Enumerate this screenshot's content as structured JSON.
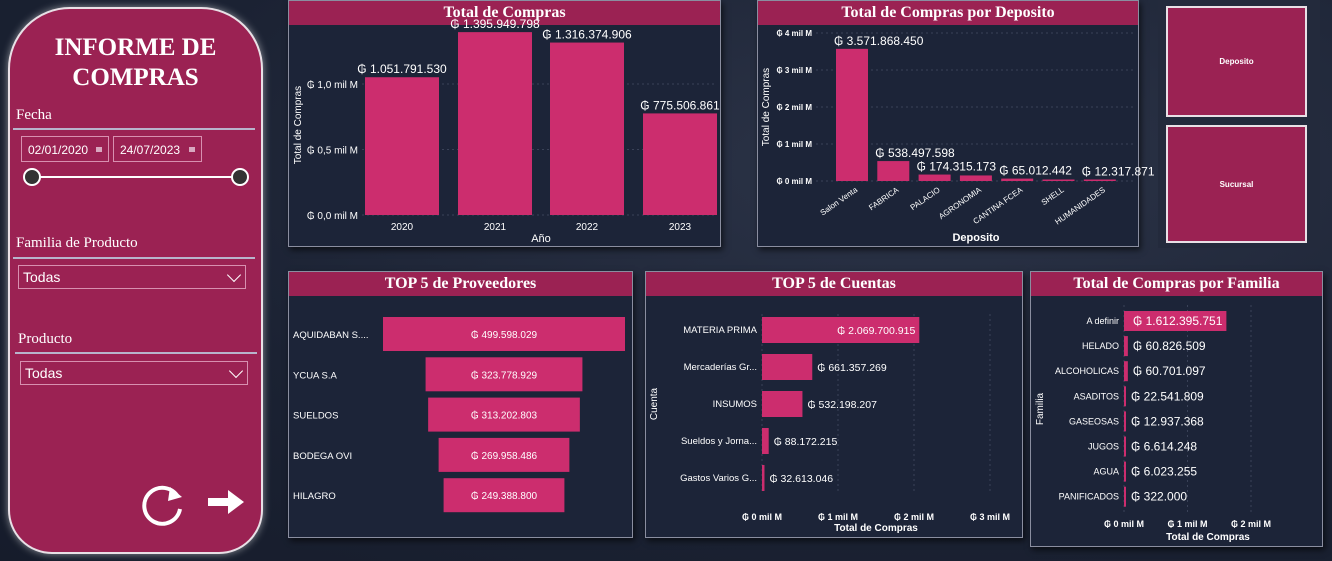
{
  "sidebar": {
    "title_line1": "INFORME DE",
    "title_line2": "COMPRAS",
    "fecha_label": "Fecha",
    "date_start": "02/01/2020",
    "date_end": "24/07/2023",
    "slider_range": [
      0,
      1
    ],
    "familia_label": "Familia de Producto",
    "familia_value": "Todas",
    "producto_label": "Producto",
    "producto_value": "Todas",
    "icons": [
      "refresh-icon",
      "arrow-right-icon"
    ]
  },
  "tiles": {
    "deposito": "Deposito",
    "sucursal": "Sucursal"
  },
  "colors": {
    "accent": "#9b2253",
    "bar": "#cc2d6e",
    "background": "#1c2438"
  },
  "chart_data": [
    {
      "id": "compras",
      "type": "bar",
      "title": "Total de Compras",
      "xlabel": "Año",
      "ylabel": "Total de Compras",
      "categories": [
        "2020",
        "2021",
        "2022",
        "2023"
      ],
      "values": [
        1051791530,
        1395949798,
        1316374906,
        775506861
      ],
      "labels": [
        "₲ 1.051.791.530",
        "₲ 1.395.949.798",
        "₲ 1.316.374.906",
        "₲ 775.506.861"
      ],
      "yticks": [
        {
          "v": 0,
          "t": "₲ 0,0 mil M"
        },
        {
          "v": 500000000,
          "t": "₲ 0,5 mil M"
        },
        {
          "v": 1000000000,
          "t": "₲ 1,0 mil M"
        }
      ],
      "grid": true
    },
    {
      "id": "deposito",
      "type": "bar",
      "title": "Total de Compras por Deposito",
      "xlabel": "Deposito",
      "ylabel": "Total de Compras",
      "categories": [
        "Salon Venta",
        "FABRICA",
        "PALACIO",
        "AGRONOMIA",
        "CANTINA FCEA",
        "SHELL",
        "HUMANIDADES"
      ],
      "values": [
        3571868450,
        538497598,
        174315173,
        150000000,
        65012442,
        20000000,
        12317871
      ],
      "labels": [
        "₲ 3.571.868.450",
        "₲ 538.497.598",
        "₲ 174.315.173",
        "",
        "₲ 65.012.442",
        "",
        "₲ 12.317.871"
      ],
      "yticks": [
        {
          "v": 0,
          "t": "₲ 0 mil M"
        },
        {
          "v": 1000000000,
          "t": "₲ 1 mil M"
        },
        {
          "v": 2000000000,
          "t": "₲ 2 mil M"
        },
        {
          "v": 3000000000,
          "t": "₲ 3 mil M"
        },
        {
          "v": 4000000000,
          "t": "₲ 4 mil M"
        }
      ],
      "ylim": [
        0,
        4000000000
      ],
      "grid": true
    },
    {
      "id": "proveedores",
      "type": "funnel",
      "title": "TOP 5 de Proveedores",
      "categories": [
        "AQUIDABAN S....",
        "YCUA S.A",
        "SUELDOS",
        "BODEGA OVI",
        "HILAGRO"
      ],
      "values": [
        499598029,
        323778929,
        313202803,
        269958486,
        249388800
      ],
      "labels": [
        "₲ 499.598.029",
        "₲ 323.778.929",
        "₲ 313.202.803",
        "₲ 269.958.486",
        "₲ 249.388.800"
      ]
    },
    {
      "id": "cuentas",
      "type": "bar-horizontal",
      "title": "TOP 5 de Cuentas",
      "xlabel": "Total de Compras",
      "ylabel": "Cuenta",
      "categories": [
        "MATERIA PRIMA",
        "Mercaderías Gr...",
        "INSUMOS",
        "Sueldos y Jorna...",
        "Gastos Varios G..."
      ],
      "values": [
        2069700915,
        661357269,
        532198207,
        88172215,
        32613046
      ],
      "labels": [
        "₲ 2.069.700.915",
        "₲ 661.357.269",
        "₲ 532.198.207",
        "₲ 88.172.215",
        "₲ 32.613.046"
      ],
      "xticks": [
        {
          "v": 0,
          "t": "₲ 0 mil M"
        },
        {
          "v": 1000000000,
          "t": "₲ 1 mil M"
        },
        {
          "v": 2000000000,
          "t": "₲ 2 mil M"
        },
        {
          "v": 3000000000,
          "t": "₲ 3 mil M"
        }
      ],
      "grid": true
    },
    {
      "id": "familia",
      "type": "bar-horizontal",
      "title": "Total de Compras por Familia",
      "xlabel": "Total de Compras",
      "ylabel": "Familia",
      "categories": [
        "A definir",
        "HELADO",
        "ALCOHOLICAS",
        "ASADITOS",
        "GASEOSAS",
        "JUGOS",
        "AGUA",
        "PANIFICADOS"
      ],
      "values": [
        1612395751,
        60826509,
        60701097,
        22541809,
        12937368,
        6614248,
        6023255,
        322000
      ],
      "labels": [
        "₲ 1.612.395.751",
        "₲ 60.826.509",
        "₲ 60.701.097",
        "₲ 22.541.809",
        "₲ 12.937.368",
        "₲ 6.614.248",
        "₲ 6.023.255",
        "₲ 322.000"
      ],
      "xticks": [
        {
          "v": 0,
          "t": "₲ 0 mil M"
        },
        {
          "v": 1000000000,
          "t": "₲ 1 mil M"
        },
        {
          "v": 2000000000,
          "t": "₲ 2 mil M"
        }
      ],
      "grid": true
    }
  ]
}
